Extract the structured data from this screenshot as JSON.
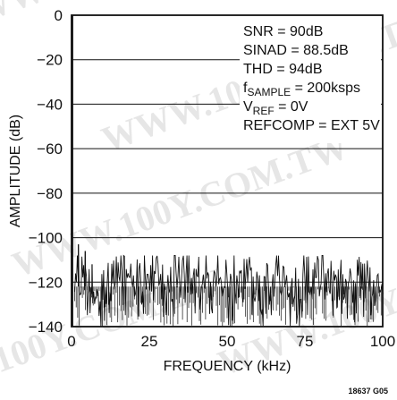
{
  "chart_data": {
    "type": "line",
    "title": "",
    "xlabel": "FREQUENCY (kHz)",
    "ylabel": "AMPLITUDE (dB)",
    "xlim": [
      0,
      100
    ],
    "ylim": [
      -140,
      0
    ],
    "x_ticks": [
      "0",
      "25",
      "50",
      "75",
      "100"
    ],
    "y_ticks": [
      "0",
      "−20",
      "−40",
      "−60",
      "−80",
      "−100",
      "−120",
      "−140"
    ],
    "grid": "horizontal",
    "annotations": [
      {
        "id": "snr",
        "text": "SNR = 90dB"
      },
      {
        "id": "sinad",
        "text": "SINAD = 88.5dB"
      },
      {
        "id": "thd",
        "text": "THD = 94dB"
      },
      {
        "id": "fsample",
        "main": "f",
        "sub": "SAMPLE",
        "rest": " = 200ksps"
      },
      {
        "id": "vref",
        "main": "V",
        "sub": "REF",
        "rest": " = 0V"
      },
      {
        "id": "refcomp",
        "text": "REFCOMP = EXT 5V"
      }
    ],
    "figure_code": "18637 G05",
    "fundamental": {
      "x": 0.2,
      "y": 0
    },
    "harmonics": [
      {
        "x": 2.2,
        "y": -103
      },
      {
        "x": 4.4,
        "y": -106
      },
      {
        "x": 6.6,
        "y": -112
      }
    ],
    "noise_floor": {
      "mean": -122,
      "peak": -110,
      "min": -140
    }
  },
  "watermark": "WWW.100Y.COM.TW"
}
